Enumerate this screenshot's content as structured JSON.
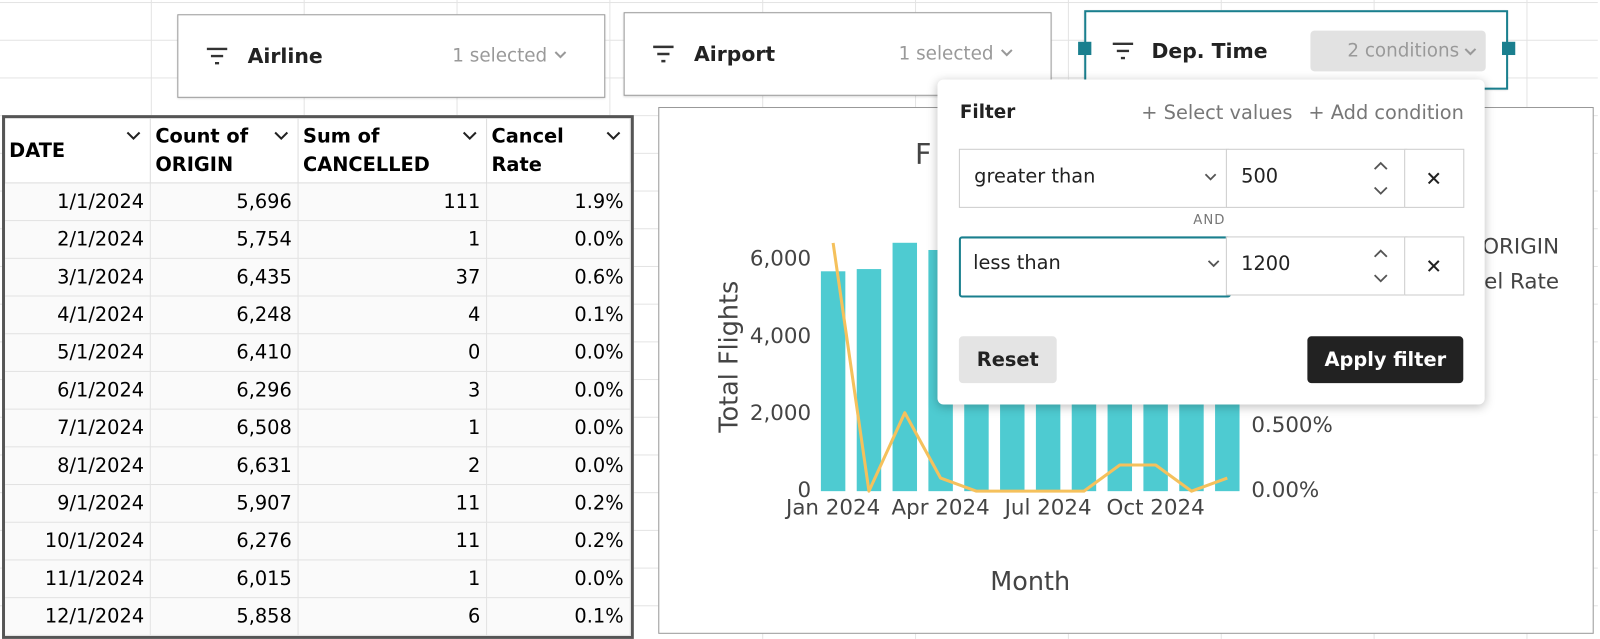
{
  "filters": [
    {
      "label": "Airline",
      "status": "1 selected"
    },
    {
      "label": "Airport",
      "status": "1 selected"
    },
    {
      "label": "Dep. Time",
      "status": "2 conditions"
    }
  ],
  "popup": {
    "title": "Filter",
    "actions": [
      "+ Select values",
      "+ Add condition"
    ],
    "conditions": [
      {
        "operator": "greater than",
        "value": "500"
      },
      {
        "operator": "less than",
        "value": "1200"
      }
    ],
    "joiner": "AND",
    "reset": "Reset",
    "apply": "Apply filter"
  },
  "table": {
    "headers": [
      "DATE",
      "Count of ORIGIN",
      "Sum of CANCELLED",
      "Cancel Rate"
    ],
    "rows": [
      [
        "1/1/2024",
        "5,696",
        "111",
        "1.9%"
      ],
      [
        "2/1/2024",
        "5,754",
        "1",
        "0.0%"
      ],
      [
        "3/1/2024",
        "6,435",
        "37",
        "0.6%"
      ],
      [
        "4/1/2024",
        "6,248",
        "4",
        "0.1%"
      ],
      [
        "5/1/2024",
        "6,410",
        "0",
        "0.0%"
      ],
      [
        "6/1/2024",
        "6,296",
        "3",
        "0.0%"
      ],
      [
        "7/1/2024",
        "6,508",
        "1",
        "0.0%"
      ],
      [
        "8/1/2024",
        "6,631",
        "2",
        "0.0%"
      ],
      [
        "9/1/2024",
        "5,907",
        "11",
        "0.2%"
      ],
      [
        "10/1/2024",
        "6,276",
        "11",
        "0.2%"
      ],
      [
        "11/1/2024",
        "6,015",
        "1",
        "0.0%"
      ],
      [
        "12/1/2024",
        "5,858",
        "6",
        "0.1%"
      ]
    ]
  },
  "chart_data": {
    "type": "bar-line",
    "title": "F",
    "x_label": "Month",
    "y_label": "Total Flights",
    "categories": [
      "Jan 2024",
      null,
      null,
      "Apr 2024",
      null,
      null,
      "Jul 2024",
      null,
      null,
      "Oct 2024",
      null,
      null
    ],
    "series": [
      {
        "name": "Count of ORIGIN",
        "color": "#4ecbd1",
        "type": "bar",
        "values": [
          5696,
          5754,
          6435,
          6248,
          6410,
          6296,
          6508,
          6631,
          5907,
          6276,
          6015,
          5858
        ]
      },
      {
        "name": "Cancel Rate",
        "color": "#f5c15c",
        "type": "line",
        "axis": "y2",
        "values": [
          1.9,
          0.0,
          0.6,
          0.1,
          0.0,
          0.0,
          0.0,
          0.0,
          0.2,
          0.2,
          0.0,
          0.1
        ]
      }
    ],
    "ylim": [
      0,
      6600
    ],
    "yticks": [
      0,
      {
        "value": 2000,
        "label": "2,000"
      },
      {
        "value": 4000,
        "label": "4,000"
      },
      {
        "value": 6000,
        "label": "6,000"
      }
    ],
    "y2lim": [
      0,
      1.95
    ],
    "y2ticks": [
      {
        "value": 0,
        "label": "0.00%"
      },
      {
        "value": 0.5,
        "label": "0.500%"
      }
    ]
  }
}
